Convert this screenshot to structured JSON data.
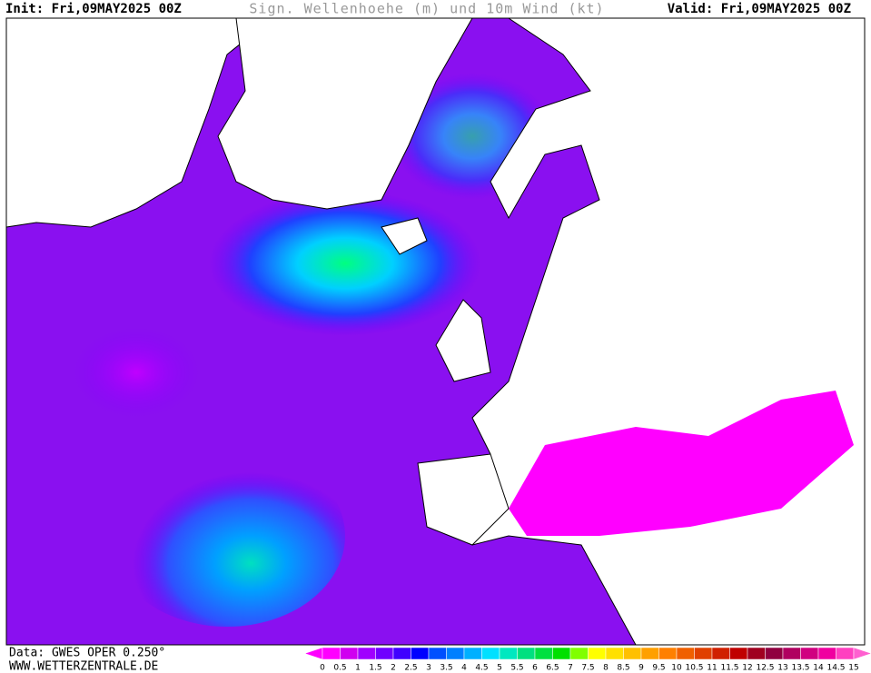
{
  "header": {
    "init": "Init: Fri,09MAY2025 00Z",
    "title": "Sign. Wellenhoehe (m) und 10m Wind (kt)",
    "valid": "Valid: Fri,09MAY2025 00Z"
  },
  "footer": {
    "source": "Data: GWES OPER 0.250°",
    "website": "WWW.WETTERZENTRALE.DE"
  },
  "colorbar": {
    "labels": [
      0,
      0.5,
      1,
      1.5,
      2,
      2.5,
      3,
      3.5,
      4,
      4.5,
      5,
      5.5,
      6,
      6.5,
      7,
      7.5,
      8,
      8.5,
      9,
      9.5,
      10,
      10.5,
      11,
      11.5,
      12,
      12.5,
      13,
      13.5,
      14,
      14.5,
      15
    ],
    "colors": [
      "#ff00ff",
      "#ff00ff",
      "#d000f0",
      "#a000ff",
      "#7000ff",
      "#4000ff",
      "#0000ff",
      "#0050ff",
      "#0080ff",
      "#00b0ff",
      "#00e0ff",
      "#00e8c0",
      "#00e080",
      "#00e040",
      "#00e000",
      "#80ff00",
      "#ffff00",
      "#ffe000",
      "#ffc000",
      "#ffa000",
      "#ff8000",
      "#f06000",
      "#e04000",
      "#d02000",
      "#c00000",
      "#a00020",
      "#900040",
      "#b00060",
      "#d00080",
      "#f000a0",
      "#ff40c0",
      "#ff60d0"
    ]
  }
}
